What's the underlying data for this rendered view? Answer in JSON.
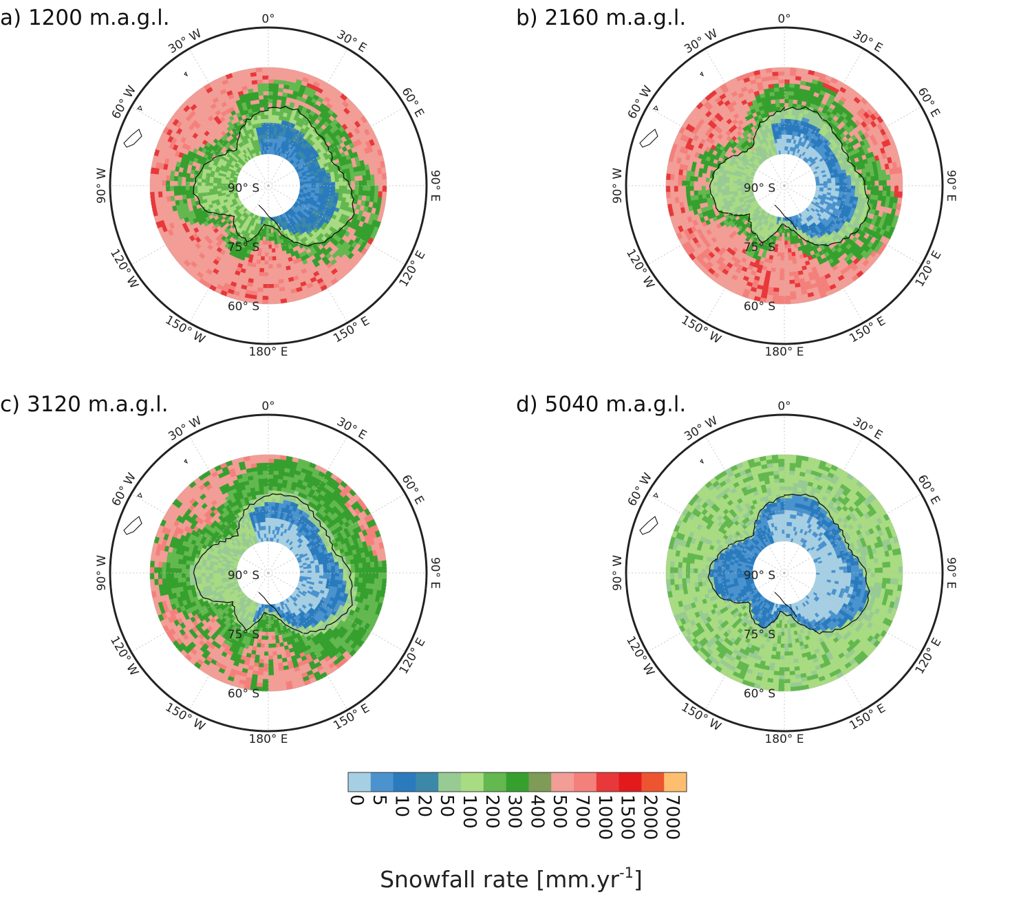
{
  "panels": [
    {
      "id": "a",
      "title": "a) 1200 m.a.g.l.",
      "scheme": "low"
    },
    {
      "id": "b",
      "title": "b) 2160 m.a.g.l.",
      "scheme": "mid"
    },
    {
      "id": "c",
      "title": "c) 3120 m.a.g.l.",
      "scheme": "high"
    },
    {
      "id": "d",
      "title": "d) 5040 m.a.g.l.",
      "scheme": "top"
    }
  ],
  "lon_labels": [
    {
      "deg": 0,
      "text": "0°"
    },
    {
      "deg": 30,
      "text": "30° E"
    },
    {
      "deg": 60,
      "text": "60° E"
    },
    {
      "deg": 90,
      "text": "90° E"
    },
    {
      "deg": 120,
      "text": "120° E"
    },
    {
      "deg": 150,
      "text": "150° E"
    },
    {
      "deg": 180,
      "text": "180° E"
    },
    {
      "deg": -150,
      "text": "150° W"
    },
    {
      "deg": -120,
      "text": "120° W"
    },
    {
      "deg": -90,
      "text": "90° W"
    },
    {
      "deg": -60,
      "text": "60° W"
    },
    {
      "deg": -30,
      "text": "30° W"
    }
  ],
  "lat_labels": [
    "90° S",
    "75° S",
    "60° S"
  ],
  "colorbar": {
    "ticks": [
      "0",
      "5",
      "10",
      "20",
      "50",
      "100",
      "200",
      "300",
      "400",
      "500",
      "700",
      "1000",
      "1500",
      "2000",
      "7000"
    ],
    "colors": [
      "#a6cfe3",
      "#4b93cf",
      "#2a7bbd",
      "#3c88a8",
      "#98cb94",
      "#a8db82",
      "#63b84f",
      "#36a02e",
      "#7e9b57",
      "#f29d96",
      "#f4807c",
      "#e8383a",
      "#e31a1c",
      "#ec5530",
      "#fdbf6f"
    ],
    "label": "Snowfall rate [mm.yr",
    "label_sup": "-1",
    "label_end": "]"
  }
}
